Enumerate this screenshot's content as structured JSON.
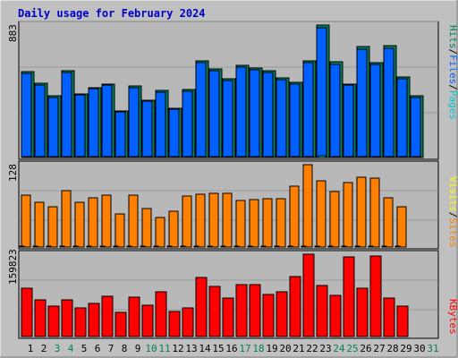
{
  "title": "Daily usage for February 2024",
  "colors": {
    "background": "#c0c0c0",
    "panel": "#b8b8b8",
    "title": "#0000cc",
    "pages": "#00c8c8",
    "files": "#0060ff",
    "hits": "#00805c",
    "sites": "#ff8000",
    "visits": "#ffff00",
    "kbytes": "#ff0000",
    "weekend": "#00805c",
    "weekday": "#000000"
  },
  "axis_labels": {
    "hits_max": "883",
    "sites_max": "128",
    "kbytes_max": "159823"
  },
  "side_labels": {
    "top": [
      "Pages",
      "/",
      "Files",
      "/",
      "Hits"
    ],
    "middle": [
      "Sites",
      "/",
      "Visits"
    ],
    "bottom": [
      "KBytes"
    ]
  },
  "chart_data": [
    {
      "type": "bar",
      "title": "Daily usage for February 2024",
      "panel": "hits",
      "categories": [
        "1",
        "2",
        "3",
        "4",
        "5",
        "6",
        "7",
        "8",
        "9",
        "10",
        "11",
        "12",
        "13",
        "14",
        "15",
        "16",
        "17",
        "18",
        "19",
        "20",
        "21",
        "22",
        "23",
        "24",
        "25",
        "26",
        "27",
        "28",
        "29",
        "30",
        "31"
      ],
      "ylim": [
        0,
        883
      ],
      "series": [
        {
          "name": "Hits",
          "color": "#00805c",
          "values": [
            570,
            496,
            411,
            577,
            424,
            467,
            491,
            310,
            476,
            384,
            445,
            328,
            451,
            645,
            589,
            527,
            614,
            595,
            576,
            530,
            499,
            644,
            883,
            636,
            491,
            738,
            632,
            743,
            538,
            411,
            0
          ]
        },
        {
          "name": "Files",
          "color": "#0060ff",
          "values": [
            560,
            486,
            402,
            565,
            415,
            458,
            481,
            302,
            467,
            376,
            436,
            320,
            442,
            632,
            577,
            516,
            602,
            583,
            564,
            519,
            489,
            631,
            865,
            623,
            481,
            722,
            619,
            728,
            527,
            402,
            0
          ]
        },
        {
          "name": "Pages",
          "color": "#00c8c8",
          "values": [
            6,
            5,
            4,
            6,
            4,
            5,
            5,
            3,
            5,
            4,
            4,
            3,
            4,
            7,
            6,
            5,
            6,
            6,
            6,
            5,
            5,
            7,
            9,
            7,
            5,
            8,
            7,
            8,
            6,
            4,
            0
          ]
        }
      ]
    },
    {
      "type": "bar",
      "panel": "sites",
      "categories": [
        "1",
        "2",
        "3",
        "4",
        "5",
        "6",
        "7",
        "8",
        "9",
        "10",
        "11",
        "12",
        "13",
        "14",
        "15",
        "16",
        "17",
        "18",
        "19",
        "20",
        "21",
        "22",
        "23",
        "24",
        "25",
        "26",
        "27",
        "28",
        "29",
        "30",
        "31"
      ],
      "ylim": [
        0,
        128
      ],
      "series": [
        {
          "name": "Visits",
          "color": "#ff8000",
          "values": [
            80,
            70,
            62,
            88,
            69,
            76,
            81,
            52,
            81,
            60,
            46,
            55,
            79,
            82,
            83,
            83,
            73,
            74,
            75,
            75,
            95,
            128,
            103,
            86,
            100,
            108,
            107,
            77,
            63,
            0,
            0
          ]
        },
        {
          "name": "Sites",
          "color": "#ffff00",
          "values": [
            1,
            1,
            1,
            1,
            1,
            1,
            1,
            1,
            1,
            1,
            1,
            1,
            1,
            1,
            1,
            1,
            1,
            1,
            1,
            1,
            1,
            2,
            2,
            1,
            1,
            2,
            2,
            1,
            1,
            0,
            0
          ]
        }
      ]
    },
    {
      "type": "bar",
      "panel": "kbytes",
      "categories": [
        "1",
        "2",
        "3",
        "4",
        "5",
        "6",
        "7",
        "8",
        "9",
        "10",
        "11",
        "12",
        "13",
        "14",
        "15",
        "16",
        "17",
        "18",
        "19",
        "20",
        "21",
        "22",
        "23",
        "24",
        "25",
        "26",
        "27",
        "28",
        "29",
        "30",
        "31"
      ],
      "ylim": [
        0,
        159823
      ],
      "series": [
        {
          "name": "KBytes",
          "color": "#ff0000",
          "values": [
            94000,
            71000,
            59000,
            71000,
            56000,
            64000,
            79000,
            47000,
            76000,
            60000,
            86000,
            48000,
            56000,
            115000,
            98000,
            74000,
            101000,
            100000,
            82000,
            86000,
            117000,
            159823,
            99000,
            80000,
            155000,
            93000,
            156000,
            74000,
            59000,
            0,
            0
          ]
        }
      ]
    }
  ]
}
